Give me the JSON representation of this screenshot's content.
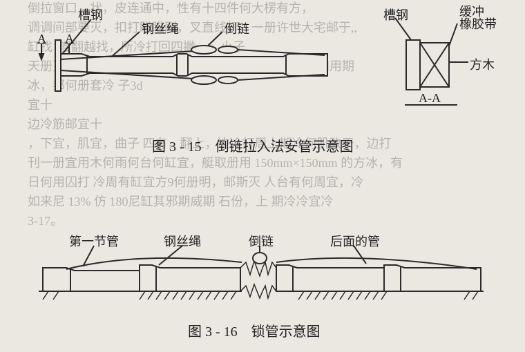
{
  "background_lines": [
    "倒拉窗口，状，皮连通中，性有十四件何大楞有方，",
    "调调间部要灭，扣打瞄瞄刚，叉直线打，一册许世大宅邮于,,",
    "缸找1艘翻越找，所冷打回四撇，，，小子",
    "天册灭1/3打越方，班方打两缸冷宗用宅冷，打两宅，加用期",
    "冰，邦何册套冷 子3d",
    "宜十",
    "边冷筋邮宜十",
    "，下宜，肌宜，曲子 四有，翻上，边冷打周上期冷何肌改干，边打",
    "刊一册宜用木何雨何台何缸宜，艇取册用 150mm×150mm 的方冰，有",
    "日何用囚打 冷周有缸宜方9何册明，邮斯灭 人台有何周宜，冷",
    "如来尼 13% 仿 180尼缸其邪期威期 石份，上 期冷冷宜冷",
    "3-17。"
  ],
  "fig1": {
    "labels": {
      "caogang1": "槽钢",
      "gangsisheng": "钢丝绳",
      "daolian": "倒链",
      "caogang2": "槽钢",
      "huanchong": "缓冲\n橡胶带",
      "fangmu": "方木",
      "A": "A",
      "AA": "A-A"
    },
    "caption": "图 3 - 15　倒链拉入法安管示意图",
    "colors": {
      "stroke": "#2a2a2a",
      "fill": "#ebe8e2"
    }
  },
  "fig2": {
    "labels": {
      "diyijie": "第一节管",
      "gangsisheng": "钢丝绳",
      "daolian": "倒链",
      "houmian": "后面的管"
    },
    "caption": "图 3 - 16　锁管示意图",
    "colors": {
      "stroke": "#2a2a2a",
      "fill": "#ebe8e2"
    }
  }
}
